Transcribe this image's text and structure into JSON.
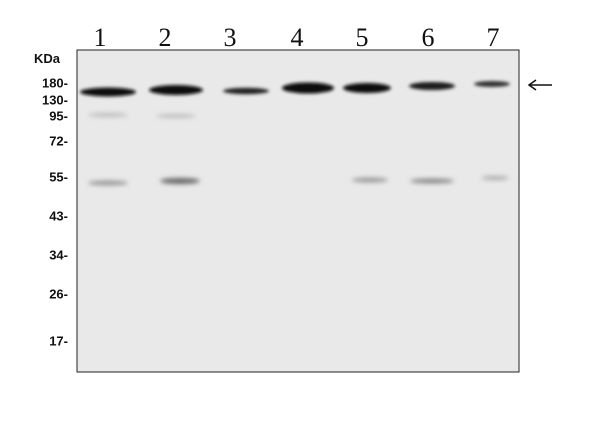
{
  "unit_label": "KDa",
  "lanes": [
    "1",
    "2",
    "3",
    "4",
    "5",
    "6",
    "7"
  ],
  "markers": [
    "180-",
    "130-",
    "95-",
    "72-",
    "55-",
    "43-",
    "34-",
    "26-",
    "17-"
  ]
}
